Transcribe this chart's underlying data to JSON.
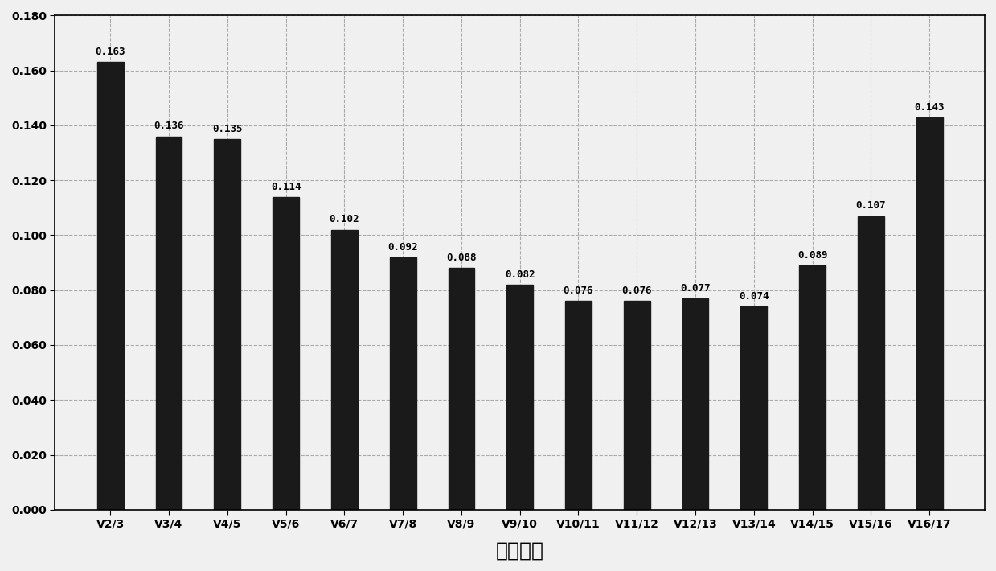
{
  "categories": [
    "V2/3",
    "V3/4",
    "V4/5",
    "V5/6",
    "V6/7",
    "V7/8",
    "V8/9",
    "V9/10",
    "V10/11",
    "V11/12",
    "V12/13",
    "V13/14",
    "V14/15",
    "V15/16",
    "V16/17"
  ],
  "values": [
    0.163,
    0.136,
    0.135,
    0.114,
    0.102,
    0.092,
    0.088,
    0.082,
    0.076,
    0.076,
    0.077,
    0.074,
    0.089,
    0.107,
    0.143
  ],
  "bar_color": "#1a1a1a",
  "xlabel": "成对变化",
  "ylim": [
    0,
    0.18
  ],
  "yticks": [
    0.0,
    0.02,
    0.04,
    0.06,
    0.08,
    0.1,
    0.12,
    0.14,
    0.16,
    0.18
  ],
  "bar_width": 0.45,
  "grid_color": "#aaaaaa",
  "background_color": "#f0f0f0",
  "xlabel_fontsize": 18,
  "tick_fontsize": 10,
  "annotation_fontsize": 9
}
